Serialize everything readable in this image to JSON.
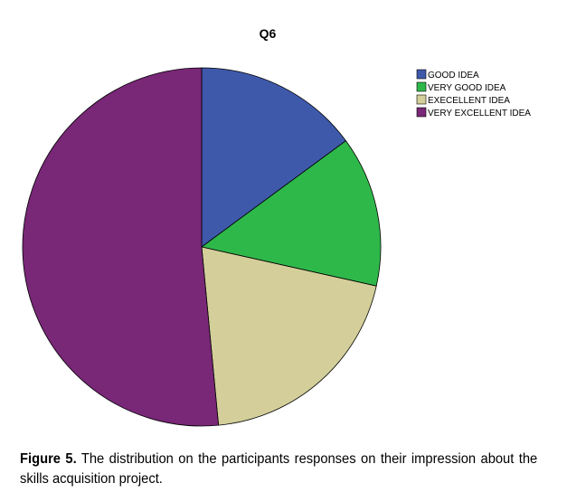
{
  "chart_data": {
    "type": "pie",
    "title": "Q6",
    "start": "top",
    "direction": "clockwise",
    "legend_position": "top-right",
    "series": [
      {
        "name": "GOOD IDEA",
        "value": 14.9,
        "color": "#3f59aa"
      },
      {
        "name": "VERY GOOD IDEA",
        "value": 13.6,
        "color": "#2fb84a"
      },
      {
        "name": "EXECELLENT IDEA",
        "value": 20.0,
        "color": "#d4cf9a"
      },
      {
        "name": "VERY EXCELLENT IDEA",
        "value": 51.5,
        "color": "#792777"
      }
    ]
  },
  "caption": {
    "label": "Figure 5.",
    "text": " The distribution on the participants responses on their impression about the skills acquisition project."
  }
}
